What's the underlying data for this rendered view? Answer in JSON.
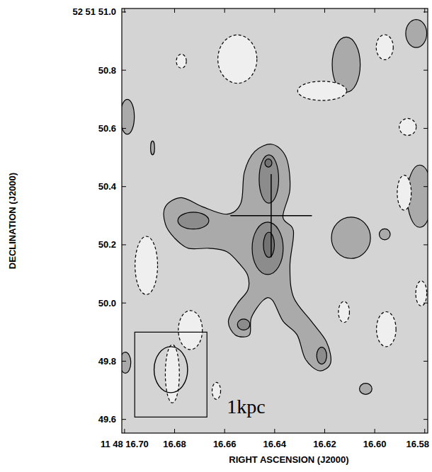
{
  "chart_data": {
    "type": "contour",
    "x_label": "RIGHT ASCENSION (J2000)",
    "y_label": "DECLINATION (J2000)",
    "annotations": [
      "1kpc"
    ],
    "xlim": [
      16.7011,
      16.5788
    ],
    "ylim": [
      49.553,
      51.012
    ],
    "xticks": [
      {
        "value": 16.7,
        "label": "11 48 16.70"
      },
      16.68,
      16.66,
      16.64,
      16.62,
      {
        "value": 16.6,
        "label": "16.60"
      },
      16.58
    ],
    "yticks": [
      {
        "value": 51.0,
        "label": "52 51 51.0"
      },
      50.8,
      50.6,
      50.4,
      50.2,
      {
        "value": 50.0,
        "label": "50.0"
      },
      49.8,
      49.6
    ],
    "grid": false,
    "contours": [
      {
        "level": 1,
        "ra": [
          16.6837,
          16.6773,
          16.6689,
          16.6591,
          16.6535,
          16.6521,
          16.6479,
          16.6409,
          16.6353,
          16.6339,
          16.6367,
          16.6325,
          16.6339,
          16.6325,
          16.6254,
          16.6193,
          16.6176,
          16.6221,
          16.6277,
          16.631,
          16.6367,
          16.6409,
          16.6445,
          16.6493,
          16.6501,
          16.6557,
          16.6585,
          16.6549,
          16.6507,
          16.6507,
          16.6535,
          16.6591,
          16.6661,
          16.6745,
          16.6801,
          16.6837
        ],
        "dec": [
          50.331,
          50.362,
          50.331,
          50.305,
          50.343,
          50.45,
          50.521,
          50.545,
          50.498,
          50.39,
          50.295,
          50.248,
          50.129,
          50.021,
          49.938,
          49.867,
          49.795,
          49.767,
          49.807,
          49.89,
          49.938,
          50.01,
          50.01,
          49.95,
          49.89,
          49.89,
          49.938,
          49.998,
          50.045,
          50.093,
          50.129,
          50.176,
          50.188,
          50.188,
          50.224,
          50.271
        ]
      },
      {
        "level": 1,
        "ra": 16.6114,
        "dec": 50.819,
        "ra_radius": 0.0056,
        "dec_radius": 0.095
      },
      {
        "level": 1,
        "ra": 16.5834,
        "dec": 50.926,
        "ra_radius": 0.0042,
        "dec_radius": 0.048
      },
      {
        "level": 1,
        "ra": 16.6989,
        "dec": 50.64,
        "ra_radius": 0.0028,
        "dec_radius": 0.06
      },
      {
        "level": 1,
        "ra": 16.582,
        "dec": 50.367,
        "ra_radius": 0.005,
        "dec_radius": 0.107
      },
      {
        "level": 1,
        "ra": 16.6095,
        "dec": 50.224,
        "ra_radius": 0.0078,
        "dec_radius": 0.071
      },
      {
        "level": 1,
        "ra": 16.596,
        "dec": 50.236,
        "ra_radius": 0.0022,
        "dec_radius": 0.019
      },
      {
        "level": 1,
        "ra": 16.6888,
        "dec": 50.533,
        "ra_radius": 0.0008,
        "dec_radius": 0.024
      },
      {
        "level": 1,
        "ra": 16.6036,
        "dec": 49.705,
        "ra_radius": 0.0025,
        "dec_radius": 0.019
      },
      {
        "level": 1,
        "ra": 16.6997,
        "dec": 49.795,
        "ra_radius": 0.0022,
        "dec_radius": 0.036
      },
      {
        "level": -1,
        "ra": 16.6549,
        "dec": 50.838,
        "ra_radius": 0.0078,
        "dec_radius": 0.083
      },
      {
        "level": -1,
        "ra": 16.6773,
        "dec": 50.831,
        "ra_radius": 0.002,
        "dec_radius": 0.024
      },
      {
        "level": -1,
        "ra": 16.621,
        "dec": 50.729,
        "ra_radius": 0.0098,
        "dec_radius": 0.033
      },
      {
        "level": -1,
        "ra": 16.596,
        "dec": 50.879,
        "ra_radius": 0.0034,
        "dec_radius": 0.043
      },
      {
        "level": -1,
        "ra": 16.6913,
        "dec": 50.129,
        "ra_radius": 0.0045,
        "dec_radius": 0.1
      },
      {
        "level": -1,
        "ra": 16.6737,
        "dec": 49.907,
        "ra_radius": 0.0048,
        "dec_radius": 0.067
      },
      {
        "level": -1,
        "ra": 16.5882,
        "dec": 50.379,
        "ra_radius": 0.0028,
        "dec_radius": 0.06
      },
      {
        "level": -1,
        "ra": 16.5954,
        "dec": 49.91,
        "ra_radius": 0.0039,
        "dec_radius": 0.06
      },
      {
        "level": -1,
        "ra": 16.6123,
        "dec": 49.969,
        "ra_radius": 0.0022,
        "dec_radius": 0.036
      },
      {
        "level": -1,
        "ra": 16.5868,
        "dec": 50.605,
        "ra_radius": 0.0034,
        "dec_radius": 0.029
      },
      {
        "level": -1,
        "ra": 16.5814,
        "dec": 50.033,
        "ra_radius": 0.0022,
        "dec_radius": 0.043
      },
      {
        "level": -1,
        "ra": 16.6633,
        "dec": 49.698,
        "ra_radius": 0.0017,
        "dec_radius": 0.029
      },
      {
        "level": -1,
        "ra": 16.6809,
        "dec": 49.757,
        "ra_radius": 0.0028,
        "dec_radius": 0.1
      },
      {
        "level": 2,
        "ra": 16.6423,
        "dec": 50.426,
        "ra_radius": 0.0039,
        "dec_radius": 0.083
      },
      {
        "level": 2,
        "ra": 16.6725,
        "dec": 50.283,
        "ra_radius": 0.0062,
        "dec_radius": 0.029
      },
      {
        "level": 2,
        "ra": 16.6428,
        "dec": 50.188,
        "ra_radius": 0.0062,
        "dec_radius": 0.09
      },
      {
        "level": 2,
        "ra": 16.6524,
        "dec": 49.926,
        "ra_radius": 0.0025,
        "dec_radius": 0.019
      },
      {
        "level": 2,
        "ra": 16.6212,
        "dec": 49.819,
        "ra_radius": 0.002,
        "dec_radius": 0.029
      },
      {
        "level": 3,
        "ra": 16.6425,
        "dec": 50.481,
        "ra_radius": 0.0014,
        "dec_radius": 0.014
      },
      {
        "level": 3,
        "ra": 16.6423,
        "dec": 50.2,
        "ra_radius": 0.0022,
        "dec_radius": 0.043
      }
    ],
    "cross": {
      "ra": 16.6414,
      "dec": 50.3,
      "ra_error": 0.0163,
      "dec_error": 0.143
    },
    "beam": {
      "ra": 16.6815,
      "dec": 49.771,
      "ra_radius": 0.0067,
      "dec_radius": 0.079
    }
  }
}
